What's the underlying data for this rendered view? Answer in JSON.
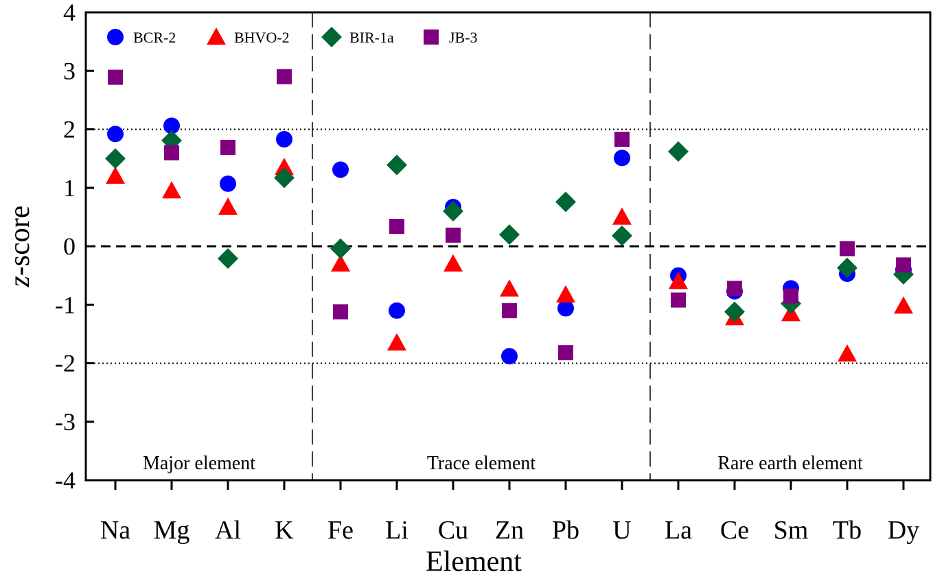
{
  "chart_data": {
    "type": "scatter",
    "title": "",
    "xlabel": "Element",
    "ylabel_italic": "z",
    "ylabel_rest": "-score",
    "ylim": [
      -4,
      4
    ],
    "yticks": [
      4,
      3,
      2,
      1,
      0,
      -1,
      -2,
      -3,
      -4
    ],
    "ytick_labels": [
      "4",
      "3",
      "2",
      "1",
      "0",
      "-1",
      "-2",
      "-3",
      "-4"
    ],
    "categories": [
      "Na",
      "Mg",
      "Al",
      "K",
      "Fe",
      "Li",
      "Cu",
      "Zn",
      "Pb",
      "U",
      "La",
      "Ce",
      "Sm",
      "Tb",
      "Dy"
    ],
    "reference_lines": [
      {
        "y": 0,
        "style": "dashed"
      },
      {
        "y": 2,
        "style": "dotted"
      },
      {
        "y": -2,
        "style": "dotted"
      }
    ],
    "group_dividers_after_index": [
      3,
      9
    ],
    "groups": [
      {
        "label": "Major element",
        "from": 0,
        "to": 3
      },
      {
        "label": "Trace element",
        "from": 4,
        "to": 9
      },
      {
        "label": "Rare earth element",
        "from": 10,
        "to": 14
      }
    ],
    "legend_position": "top",
    "series": [
      {
        "name": "BCR-2",
        "marker": "circle",
        "color": "#0000ff",
        "values": [
          1.92,
          2.06,
          1.07,
          1.83,
          1.31,
          -1.1,
          0.67,
          -1.88,
          -1.06,
          1.51,
          -0.5,
          -0.77,
          -0.72,
          -0.47,
          -0.4
        ]
      },
      {
        "name": "BHVO-2",
        "marker": "triangle",
        "color": "#ff0000",
        "values": [
          1.2,
          0.95,
          0.67,
          1.35,
          -0.3,
          -1.65,
          -0.3,
          -0.73,
          -0.83,
          0.5,
          -0.6,
          -1.22,
          -1.15,
          -1.84,
          -1.02
        ]
      },
      {
        "name": "BIR-1a",
        "marker": "diamond",
        "color": "#006633",
        "values": [
          1.5,
          1.81,
          -0.21,
          1.17,
          -0.04,
          1.39,
          0.6,
          0.2,
          0.76,
          0.18,
          1.62,
          -1.12,
          -0.98,
          -0.37,
          -0.48
        ]
      },
      {
        "name": "JB-3",
        "marker": "square",
        "color": "#800080",
        "values": [
          2.89,
          1.6,
          1.69,
          2.9,
          -1.12,
          0.34,
          0.19,
          -1.1,
          -1.82,
          1.83,
          -0.92,
          -0.72,
          -0.85,
          -0.04,
          -0.32
        ]
      }
    ]
  }
}
